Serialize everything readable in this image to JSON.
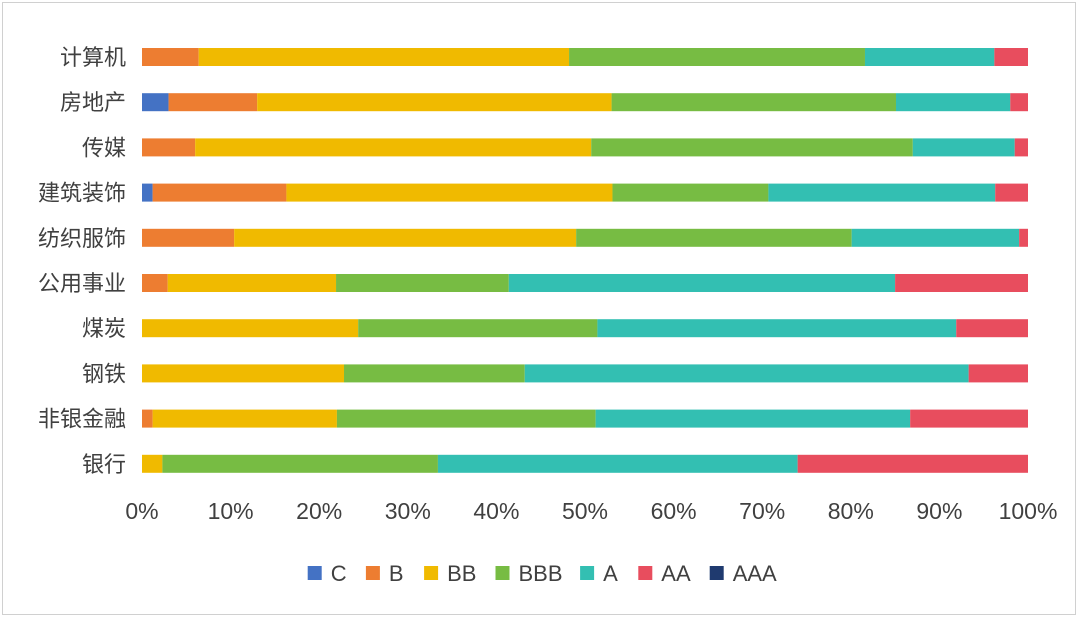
{
  "chart_data": {
    "type": "bar",
    "orientation": "horizontal",
    "stacked": "percent",
    "categories": [
      "计算机",
      "房地产",
      "传媒",
      "建筑装饰",
      "纺织服饰",
      "公用事业",
      "煤炭",
      "钢铁",
      "非银金融",
      "银行"
    ],
    "series": [
      {
        "name": "C",
        "color": "#4472C4",
        "values": [
          0,
          3.0,
          0,
          1.2,
          0,
          0,
          0,
          0,
          0,
          0
        ]
      },
      {
        "name": "B",
        "color": "#ED7D31",
        "values": [
          6.4,
          10.0,
          6.0,
          15.1,
          10.4,
          2.9,
          0,
          0,
          1.2,
          0
        ]
      },
      {
        "name": "BB",
        "color": "#F0BA00",
        "values": [
          41.8,
          40.0,
          44.7,
          36.8,
          38.6,
          19.0,
          24.4,
          22.8,
          20.8,
          2.3
        ]
      },
      {
        "name": "BBB",
        "color": "#77BC43",
        "values": [
          33.4,
          32.1,
          36.3,
          17.6,
          31.1,
          19.5,
          27.0,
          20.4,
          29.2,
          31.1
        ]
      },
      {
        "name": "A",
        "color": "#33BFB2",
        "values": [
          14.6,
          12.9,
          11.5,
          25.6,
          18.9,
          43.6,
          40.5,
          50.1,
          35.5,
          40.6
        ]
      },
      {
        "name": "AA",
        "color": "#E84D5E",
        "values": [
          3.8,
          2.0,
          1.5,
          3.7,
          1.0,
          15.0,
          8.1,
          6.7,
          13.3,
          26.0
        ]
      },
      {
        "name": "AAA",
        "color": "#1F3A6F",
        "values": [
          0,
          0,
          0,
          0,
          0,
          0,
          0,
          0,
          0,
          0
        ]
      }
    ],
    "xlim": [
      0,
      100
    ],
    "xticks": [
      "0%",
      "10%",
      "20%",
      "30%",
      "40%",
      "50%",
      "60%",
      "70%",
      "80%",
      "90%",
      "100%"
    ],
    "title": "",
    "xlabel": "",
    "ylabel": "",
    "grid": false,
    "legend_position": "bottom"
  }
}
